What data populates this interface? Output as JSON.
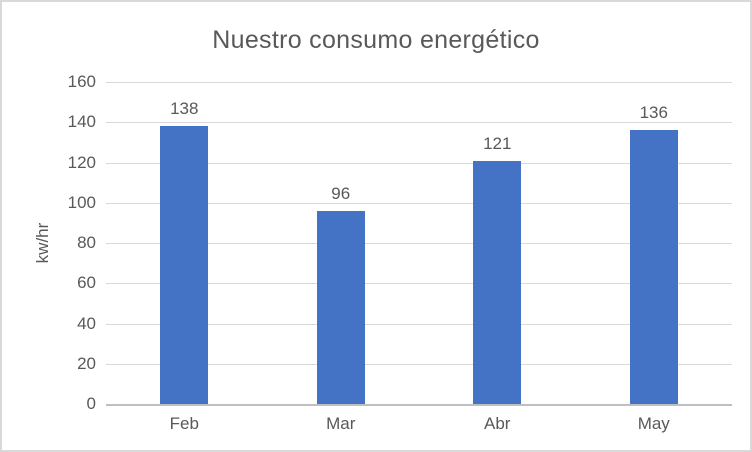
{
  "frame": {
    "background_color": "#FFFFFF",
    "border_color": "#D9D9D9"
  },
  "chart_data": {
    "type": "bar",
    "title": "Nuestro consumo energético",
    "categories": [
      "Feb",
      "Mar",
      "Abr",
      "May"
    ],
    "values": [
      138,
      96,
      121,
      136
    ],
    "data_labels_visible": true,
    "xlabel": "",
    "ylabel": "kw/hr",
    "ylim": [
      0,
      160
    ],
    "ytick_step": 20,
    "yticks": [
      0,
      20,
      40,
      60,
      80,
      100,
      120,
      140,
      160
    ],
    "grid": true,
    "legend": false,
    "bar_color": "#4472C4",
    "gridline_color": "#D9D9D9",
    "axis_line_color": "#BFBFBF",
    "text_color": "#595959"
  }
}
